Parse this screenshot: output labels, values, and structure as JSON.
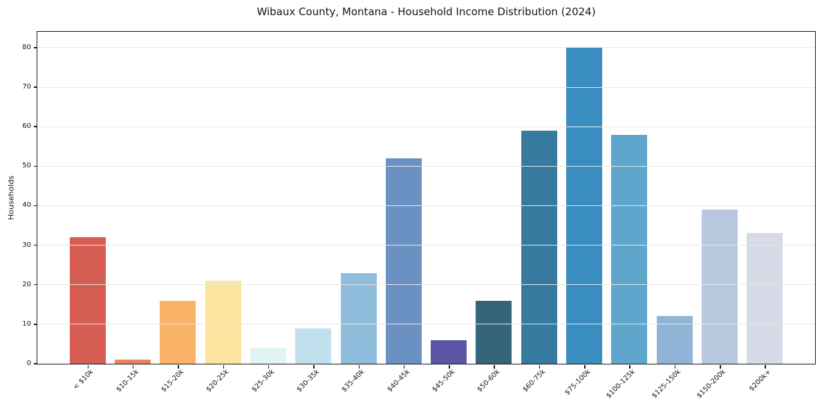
{
  "chart_data": {
    "type": "bar",
    "title": "Wibaux County, Montana - Household Income Distribution (2024)",
    "xlabel": "",
    "ylabel": "Households",
    "categories": [
      "< $10k",
      "$10-15k",
      "$15-20k",
      "$20-25k",
      "$25-30k",
      "$30-35k",
      "$35-40k",
      "$40-45k",
      "$45-50k",
      "$50-60k",
      "$60-75k",
      "$75-100k",
      "$100-125k",
      "$125-150k",
      "$150-200k",
      "$200k+"
    ],
    "values": [
      32,
      1,
      16,
      21,
      4,
      9,
      23,
      52,
      6,
      16,
      59,
      80,
      58,
      12,
      39,
      33
    ],
    "bar_colors": [
      "#d65d53",
      "#ed8260",
      "#f9b369",
      "#fde39e",
      "#e2f3f5",
      "#c1e0ed",
      "#91bddc",
      "#6b91c3",
      "#5a56a5",
      "#35657b",
      "#377a9f",
      "#3a8dc0",
      "#5ea6cb",
      "#8fb4d6",
      "#b8c9df",
      "#d7dae7"
    ],
    "yticks": [
      0,
      10,
      20,
      30,
      40,
      50,
      60,
      70,
      80
    ],
    "ylim": [
      0,
      84
    ],
    "grid": "horizontal",
    "legend": "none",
    "background_color": "#ffffff",
    "axis_color": "#151515",
    "gridline_color": "#e7e7e7"
  }
}
